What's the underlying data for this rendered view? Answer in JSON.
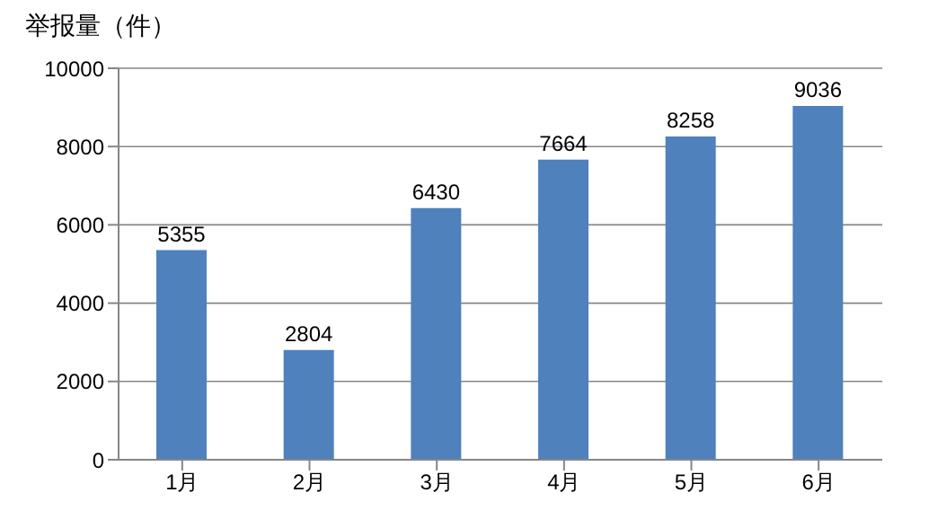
{
  "chart_data": {
    "type": "bar",
    "ylabel": "举报量（件）",
    "categories": [
      "1月",
      "2月",
      "3月",
      "4月",
      "5月",
      "6月"
    ],
    "values": [
      5355,
      2804,
      6430,
      7664,
      8258,
      9036
    ],
    "color": "#4f81bd",
    "ylim": [
      0,
      10000
    ],
    "yticks": [
      0,
      2000,
      4000,
      6000,
      8000,
      10000
    ],
    "grid": "y",
    "data_labels": true
  }
}
